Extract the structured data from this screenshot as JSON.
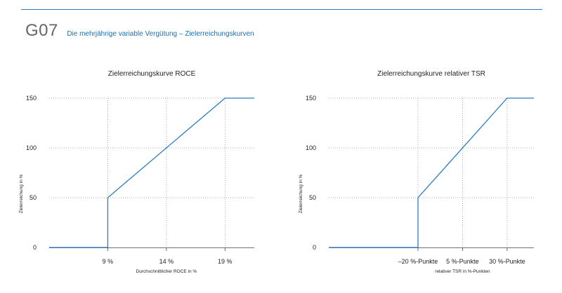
{
  "header": {
    "code": "G07",
    "title": "Die mehrjährige variable Vergütung – Zielerreichungskurven"
  },
  "colors": {
    "accent": "#2b7cc0",
    "line": "#2b7cc0",
    "grid": "#9a9a9a",
    "axis": "#444444"
  },
  "chart_data": [
    {
      "type": "line",
      "title": "Zielerreichungskurve ROCE",
      "xlabel": "Durchschnittlicher ROCE in %",
      "ylabel": "Zielerreichung in %",
      "xlim": [
        4,
        21.5
      ],
      "ylim": [
        0,
        150
      ],
      "x_ticks": [
        9,
        14,
        19
      ],
      "x_tick_labels": [
        "9 %",
        "14 %",
        "19 %"
      ],
      "y_ticks": [
        0,
        50,
        100,
        150
      ],
      "y_tick_labels": [
        "0",
        "50",
        "100",
        "150"
      ],
      "grid": true,
      "series": [
        {
          "points": [
            [
              4,
              0
            ],
            [
              9,
              0
            ],
            [
              9,
              50
            ],
            [
              19,
              150
            ],
            [
              21.5,
              150
            ]
          ]
        }
      ]
    },
    {
      "type": "line",
      "title": "Zielerreichungskurve relativer TSR",
      "xlabel": "relativer TSR in %-Punkten",
      "ylabel": "Zielerreichung in %",
      "xlim": [
        -70,
        45
      ],
      "ylim": [
        0,
        150
      ],
      "x_ticks": [
        -20,
        5,
        30
      ],
      "x_tick_labels": [
        "–20 %-Punkte",
        "5 %-Punkte",
        "30 %-Punkte"
      ],
      "y_ticks": [
        0,
        50,
        100,
        150
      ],
      "y_tick_labels": [
        "0",
        "50",
        "100",
        "150"
      ],
      "grid": true,
      "series": [
        {
          "points": [
            [
              -70,
              0
            ],
            [
              -20,
              0
            ],
            [
              -20,
              50
            ],
            [
              30,
              150
            ],
            [
              45,
              150
            ]
          ]
        }
      ]
    }
  ]
}
